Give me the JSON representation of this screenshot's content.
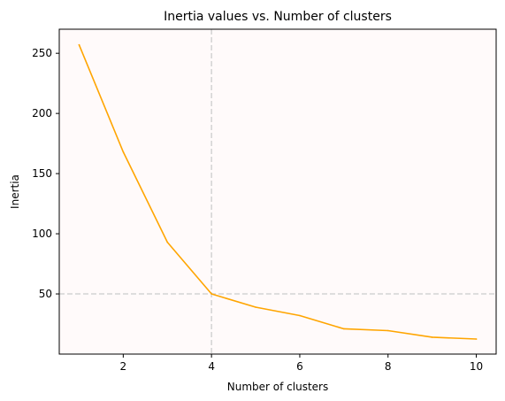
{
  "chart_data": {
    "type": "line",
    "title": "Inertia values vs. Number of clusters",
    "xlabel": "Number of clusters",
    "ylabel": "Inertia",
    "x": [
      1,
      2,
      3,
      4,
      5,
      6,
      7,
      8,
      9,
      10
    ],
    "series": [
      {
        "values": [
          257,
          168,
          93,
          50,
          39,
          32,
          21,
          19.5,
          14,
          12.5
        ],
        "color": "#FFA500"
      }
    ],
    "xlim": [
      0.55,
      10.45
    ],
    "ylim": [
      0,
      270
    ],
    "xticks": [
      2,
      4,
      6,
      8,
      10
    ],
    "yticks": [
      50,
      100,
      150,
      200,
      250
    ],
    "reference_lines": {
      "vertical_x": 4,
      "horizontal_y": 50,
      "color": "#D3D3D3",
      "style": "dashed"
    },
    "plot_background": "#FFFAFA",
    "grid": false,
    "legend": "none"
  }
}
